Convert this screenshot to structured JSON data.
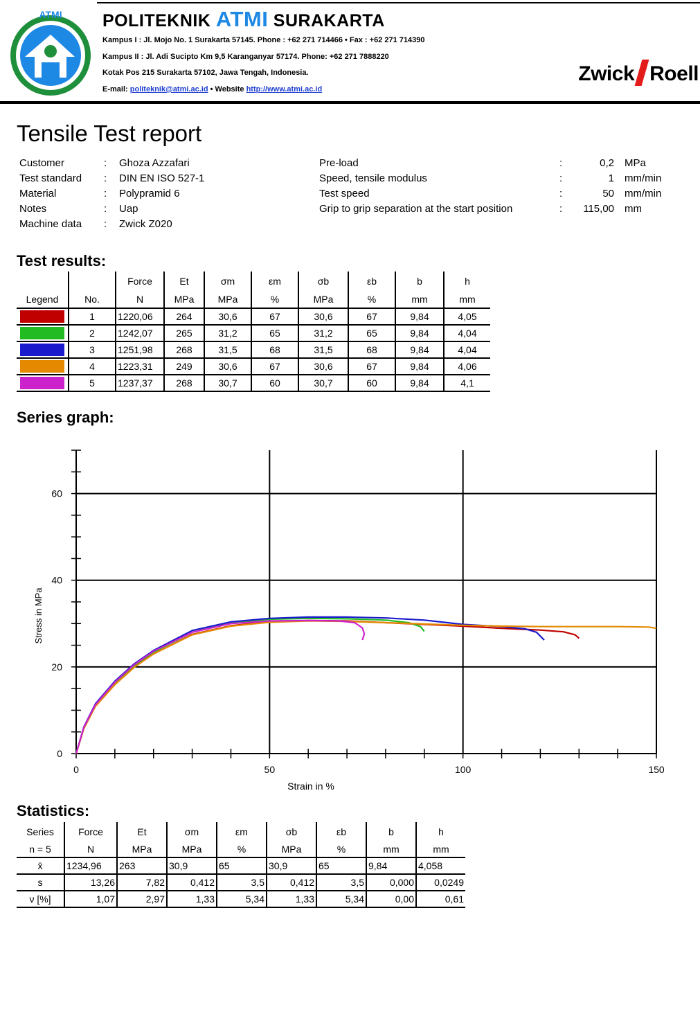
{
  "header": {
    "institute_prefix": "POLITEKNIK",
    "institute_accent": "ATMI",
    "institute_suffix": "SURAKARTA",
    "logo_arc_text": "ATMI",
    "address_1": "Kampus I : Jl. Mojo No. 1 Surakarta 57145. Phone : +62 271 714466 • Fax : +62 271 714390",
    "address_2": "Kampus II : Jl. Adi Sucipto Km 9,5 Karanganyar 57174. Phone: +62 271 7888220",
    "address_3": "Kotak Pos 215 Surakarta 57102, Jawa Tengah, Indonesia.",
    "email_label": "E-mail:",
    "email": "politeknik@atmi.ac.id",
    "website_label": "• Website",
    "website": "http://www.atmi.ac.id",
    "brand_left": "Zwick",
    "brand_right": "Roell",
    "brand_color": "#e31b1b",
    "accent_color": "#1e88e5"
  },
  "title": "Tensile Test report",
  "info_left": [
    {
      "label": "Customer",
      "sep": ":",
      "value": "Ghoza Azzafari"
    },
    {
      "label": "Test standard",
      "sep": ":",
      "value": "DIN EN ISO 527-1"
    },
    {
      "label": "Material",
      "sep": ":",
      "value": "Polypramid 6"
    },
    {
      "label": "Notes",
      "sep": ":",
      "value": "Uap"
    },
    {
      "label": "Machine data",
      "sep": ":",
      "value": "Zwick Z020"
    }
  ],
  "info_right": [
    {
      "label": "Pre-load",
      "sep": ":",
      "value": "0,2",
      "unit": "MPa"
    },
    {
      "label": "Speed, tensile modulus",
      "sep": ":",
      "value": "1",
      "unit": "mm/min"
    },
    {
      "label": "Test speed",
      "sep": ":",
      "value": "50",
      "unit": "mm/min"
    },
    {
      "label": "Grip to grip separation at the start position",
      "sep": ":",
      "value": "115,00",
      "unit": "mm"
    }
  ],
  "results": {
    "heading": "Test results:",
    "header_top": [
      "",
      "",
      "Force",
      "Et",
      "σm",
      "εm",
      "σb",
      "εb",
      "b",
      "h"
    ],
    "header_bottom": [
      "Legend",
      "No.",
      "N",
      "MPa",
      "MPa",
      "%",
      "MPa",
      "%",
      "mm",
      "mm"
    ],
    "rows": [
      {
        "color": "#c00000",
        "cells": [
          "1",
          "1220,06",
          "264",
          "30,6",
          "67",
          "30,6",
          "67",
          "9,84",
          "4,05"
        ]
      },
      {
        "color": "#22bb22",
        "cells": [
          "2",
          "1242,07",
          "265",
          "31,2",
          "65",
          "31,2",
          "65",
          "9,84",
          "4,04"
        ]
      },
      {
        "color": "#1a1acc",
        "cells": [
          "3",
          "1251,98",
          "268",
          "31,5",
          "68",
          "31,5",
          "68",
          "9,84",
          "4,04"
        ]
      },
      {
        "color": "#e58a00",
        "cells": [
          "4",
          "1223,31",
          "249",
          "30,6",
          "67",
          "30,6",
          "67",
          "9,84",
          "4,06"
        ]
      },
      {
        "color": "#cc22cc",
        "cells": [
          "5",
          "1237,37",
          "268",
          "30,7",
          "60",
          "30,7",
          "60",
          "9,84",
          "4,1"
        ]
      }
    ]
  },
  "graph_heading": "Series graph:",
  "chart_data": {
    "type": "line",
    "xlabel": "Strain in %",
    "ylabel": "Stress in MPa",
    "xlim": [
      0,
      150
    ],
    "ylim": [
      0,
      70
    ],
    "x_ticks": [
      "0",
      "50",
      "100",
      "150"
    ],
    "y_ticks": [
      "0",
      "20",
      "40",
      "60"
    ],
    "grid": true,
    "series": [
      {
        "color": "#c00000",
        "points": [
          [
            0,
            0
          ],
          [
            2,
            6
          ],
          [
            5,
            11
          ],
          [
            10,
            16
          ],
          [
            15,
            20
          ],
          [
            20,
            23
          ],
          [
            30,
            27.5
          ],
          [
            40,
            29.5
          ],
          [
            50,
            30.4
          ],
          [
            60,
            30.7
          ],
          [
            70,
            30.6
          ],
          [
            80,
            30.2
          ],
          [
            90,
            29.8
          ],
          [
            100,
            29.4
          ],
          [
            110,
            28.9
          ],
          [
            120,
            28.5
          ],
          [
            126,
            28.1
          ],
          [
            129,
            27.4
          ],
          [
            130,
            26.6
          ]
        ]
      },
      {
        "color": "#22bb22",
        "points": [
          [
            0,
            0
          ],
          [
            2,
            6
          ],
          [
            5,
            11.2
          ],
          [
            10,
            16.3
          ],
          [
            15,
            20.3
          ],
          [
            20,
            23.4
          ],
          [
            30,
            28
          ],
          [
            40,
            30.1
          ],
          [
            50,
            31
          ],
          [
            60,
            31.2
          ],
          [
            70,
            31.1
          ],
          [
            80,
            30.8
          ],
          [
            86,
            30.2
          ],
          [
            89,
            29.3
          ],
          [
            90,
            28.2
          ]
        ]
      },
      {
        "color": "#1a1acc",
        "points": [
          [
            0,
            0
          ],
          [
            2,
            6.2
          ],
          [
            5,
            11.5
          ],
          [
            10,
            16.7
          ],
          [
            15,
            20.7
          ],
          [
            20,
            23.8
          ],
          [
            30,
            28.4
          ],
          [
            40,
            30.4
          ],
          [
            50,
            31.2
          ],
          [
            60,
            31.5
          ],
          [
            70,
            31.5
          ],
          [
            80,
            31.3
          ],
          [
            90,
            30.8
          ],
          [
            100,
            29.8
          ],
          [
            110,
            29.3
          ],
          [
            116,
            28.8
          ],
          [
            119,
            28
          ],
          [
            121,
            26.2
          ]
        ]
      },
      {
        "color": "#e58a00",
        "points": [
          [
            0,
            0
          ],
          [
            2,
            5.8
          ],
          [
            5,
            10.9
          ],
          [
            10,
            15.9
          ],
          [
            15,
            19.9
          ],
          [
            20,
            23
          ],
          [
            30,
            27.4
          ],
          [
            40,
            29.4
          ],
          [
            50,
            30.3
          ],
          [
            60,
            30.6
          ],
          [
            70,
            30.5
          ],
          [
            80,
            30.2
          ],
          [
            90,
            29.9
          ],
          [
            100,
            29.6
          ],
          [
            110,
            29.4
          ],
          [
            120,
            29.3
          ],
          [
            130,
            29.3
          ],
          [
            140,
            29.3
          ],
          [
            148,
            29.2
          ],
          [
            150,
            28.9
          ]
        ]
      },
      {
        "color": "#cc22cc",
        "points": [
          [
            0,
            0
          ],
          [
            2,
            6.1
          ],
          [
            5,
            11.3
          ],
          [
            10,
            16.5
          ],
          [
            15,
            20.5
          ],
          [
            20,
            23.6
          ],
          [
            30,
            28
          ],
          [
            40,
            30
          ],
          [
            50,
            30.6
          ],
          [
            60,
            30.7
          ],
          [
            68,
            30.6
          ],
          [
            72,
            30.2
          ],
          [
            74,
            29
          ],
          [
            74.5,
            27.6
          ],
          [
            74,
            26.2
          ]
        ]
      }
    ]
  },
  "statistics": {
    "heading": "Statistics:",
    "header_top": [
      "Series",
      "Force",
      "Et",
      "σm",
      "εm",
      "σb",
      "εb",
      "b",
      "h"
    ],
    "header_bottom": [
      "n = 5",
      "N",
      "MPa",
      "MPa",
      "%",
      "MPa",
      "%",
      "mm",
      "mm"
    ],
    "rows": [
      [
        "x̄",
        "1234,96",
        "263",
        "30,9",
        "65",
        "30,9",
        "65",
        "9,84",
        "4,058"
      ],
      [
        "s",
        "13,26",
        "7,82",
        "0,412",
        "3,5",
        "0,412",
        "3,5",
        "0,000",
        "0,0249"
      ],
      [
        "ν [%]",
        "1,07",
        "2,97",
        "1,33",
        "5,34",
        "1,33",
        "5,34",
        "0,00",
        "0,61"
      ]
    ]
  }
}
